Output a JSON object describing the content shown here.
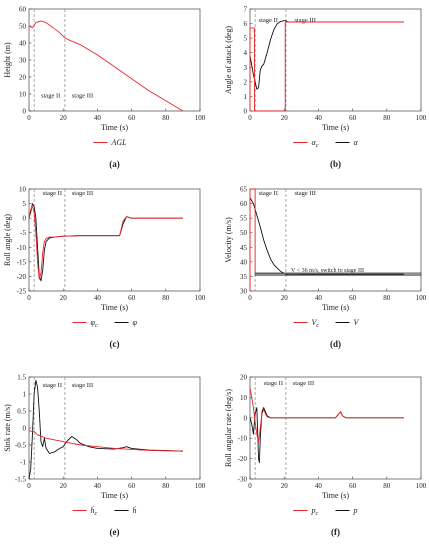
{
  "colors": {
    "cmd": "#e8262b",
    "actual": "#111111",
    "axis": "#444444",
    "guide": "#888888"
  },
  "chart_data": [
    {
      "panel_label": "(a)",
      "type": "line",
      "xlabel": "Time (s)",
      "ylabel": "Height (m)",
      "xlim": [
        0,
        100
      ],
      "ylim": [
        0,
        60
      ],
      "xticks": [
        0,
        20,
        40,
        60,
        80,
        100
      ],
      "yticks": [
        0,
        10,
        20,
        30,
        40,
        50,
        60
      ],
      "stage_lines": [
        3,
        21
      ],
      "stage_labels": [
        {
          "text": "stage II",
          "x": 7,
          "y": 8
        },
        {
          "text": "stage III",
          "x": 25,
          "y": 8
        }
      ],
      "series": [
        {
          "name": "AGL",
          "role": "cmd",
          "math": true,
          "x": [
            0,
            2,
            4,
            7,
            10,
            14,
            18,
            21,
            24,
            30,
            40,
            50,
            60,
            70,
            80,
            90
          ],
          "y": [
            50,
            49,
            52,
            53,
            52,
            49,
            46,
            43,
            41.5,
            39,
            33,
            26,
            19,
            12,
            6,
            0
          ]
        }
      ],
      "legend": [
        {
          "text": "AGL",
          "role": "cmd",
          "math": true
        }
      ]
    },
    {
      "panel_label": "(b)",
      "type": "line",
      "xlabel": "Time (s)",
      "ylabel": "Angle of attack (deg)",
      "xlim": [
        0,
        100
      ],
      "ylim": [
        0,
        7
      ],
      "xticks": [
        0,
        20,
        40,
        60,
        80,
        100
      ],
      "yticks": [
        0,
        1,
        2,
        3,
        4,
        5,
        6,
        7
      ],
      "stage_lines": [
        3,
        21
      ],
      "stage_labels": [
        {
          "text": "stage II",
          "x": 5,
          "y": 6.1
        },
        {
          "text": "stage III",
          "x": 26,
          "y": 6.1
        }
      ],
      "series": [
        {
          "name": "αc",
          "role": "cmd",
          "x": [
            0,
            0,
            2.6,
            2.6,
            20.6,
            20.6,
            90
          ],
          "y": [
            0,
            5.7,
            5.7,
            0,
            0,
            6.1,
            6.1
          ]
        },
        {
          "name": "α",
          "role": "actual",
          "x": [
            0,
            2,
            4,
            5,
            6,
            7,
            8,
            10,
            12,
            14,
            16,
            18,
            20,
            21,
            22,
            25,
            30,
            40,
            90
          ],
          "y": [
            3.8,
            2.5,
            1.5,
            1.6,
            2.8,
            3.1,
            3.2,
            4.0,
            4.9,
            5.6,
            6.0,
            6.15,
            6.2,
            6.2,
            6.12,
            6.1,
            6.1,
            6.1,
            6.1
          ]
        }
      ],
      "legend": [
        {
          "text": "αc",
          "role": "cmd",
          "math": true
        },
        {
          "text": "α",
          "role": "actual",
          "math": true
        }
      ]
    },
    {
      "panel_label": "(c)",
      "type": "line",
      "xlabel": "Time (s)",
      "ylabel": "Roll angle (deg)",
      "xlim": [
        0,
        100
      ],
      "ylim": [
        -25,
        10
      ],
      "xticks": [
        0,
        20,
        40,
        60,
        80,
        100
      ],
      "yticks": [
        -25,
        -20,
        -15,
        -10,
        -5,
        0,
        5,
        10
      ],
      "stage_lines": [
        3,
        21
      ],
      "stage_labels": [
        {
          "text": "stage II",
          "x": 8,
          "y": 8
        },
        {
          "text": "stage III",
          "x": 25,
          "y": 8
        }
      ],
      "series": [
        {
          "name": "φc",
          "role": "cmd",
          "x": [
            0,
            1,
            2,
            3,
            4,
            5,
            6,
            7,
            8,
            9,
            10,
            12,
            15,
            20,
            30,
            40,
            50,
            53,
            55,
            57,
            60,
            90
          ],
          "y": [
            0,
            3,
            4,
            2,
            -5,
            -15,
            -21,
            -19,
            -12,
            -8,
            -7,
            -6.5,
            -6.5,
            -6.2,
            -6,
            -6,
            -6,
            -6,
            -1,
            0.5,
            0,
            0
          ]
        },
        {
          "name": "φ",
          "role": "actual",
          "x": [
            0,
            1,
            2,
            3,
            4,
            5,
            6,
            7,
            8,
            9,
            10,
            12,
            15,
            20,
            30,
            40,
            50,
            53,
            55,
            57,
            60,
            90
          ],
          "y": [
            0,
            2,
            5,
            4,
            0,
            -10,
            -20,
            -21.5,
            -18,
            -11,
            -8,
            -6.8,
            -6.5,
            -6.2,
            -6,
            -6,
            -6,
            -6,
            -2,
            0.5,
            0,
            0
          ]
        }
      ],
      "legend": [
        {
          "text": "φc",
          "role": "cmd",
          "math": true
        },
        {
          "text": "φ",
          "role": "actual",
          "math": true
        }
      ]
    },
    {
      "panel_label": "(d)",
      "type": "line",
      "xlabel": "Time (s)",
      "ylabel": "Velocity (m/s)",
      "xlim": [
        0,
        100
      ],
      "ylim": [
        30,
        65
      ],
      "xticks": [
        0,
        20,
        40,
        60,
        80,
        100
      ],
      "yticks": [
        30,
        35,
        40,
        45,
        50,
        55,
        60,
        65
      ],
      "stage_lines": [
        3,
        21
      ],
      "stage_labels": [
        {
          "text": "stage II",
          "x": 5,
          "y": 63
        },
        {
          "text": "stage III",
          "x": 26,
          "y": 63
        }
      ],
      "annotation": {
        "text": "V < 36 m/s, switch to stage III",
        "x": 24,
        "y": 36.6
      },
      "threshold_band": [
        35.4,
        36.2
      ],
      "series": [
        {
          "name": "Vc",
          "role": "cmd",
          "x": [
            0,
            0,
            3,
            3,
            90
          ],
          "y": [
            30,
            65,
            65,
            36,
            36
          ]
        },
        {
          "name": "V",
          "role": "actual",
          "x": [
            0,
            2,
            4,
            6,
            8,
            10,
            12,
            14,
            16,
            18,
            20,
            22,
            25,
            30,
            40,
            60,
            90
          ],
          "y": [
            62,
            60,
            56,
            52,
            47.5,
            44,
            41,
            39,
            37.8,
            36.7,
            36,
            35.6,
            35.5,
            35.6,
            35.6,
            35.6,
            35.6
          ]
        }
      ],
      "legend": [
        {
          "text": "Vc",
          "role": "cmd",
          "math": true
        },
        {
          "text": "V",
          "role": "actual",
          "math": true
        }
      ]
    },
    {
      "panel_label": "(e)",
      "type": "line",
      "xlabel": "Time (s)",
      "ylabel": "Sink rate (m/s)",
      "xlim": [
        0,
        100
      ],
      "ylim": [
        -1.5,
        1.5
      ],
      "xticks": [
        0,
        20,
        40,
        60,
        80,
        100
      ],
      "yticks": [
        -1.5,
        -1,
        -0.5,
        0,
        0.5,
        1,
        1.5
      ],
      "stage_lines": [
        3,
        21
      ],
      "stage_labels": [
        {
          "text": "stage II",
          "x": 8,
          "y": 1.2
        },
        {
          "text": "stage III",
          "x": 25,
          "y": 1.2
        }
      ],
      "series": [
        {
          "name": "ḣc",
          "role": "cmd",
          "x": [
            0,
            2,
            3,
            5,
            10,
            15,
            20,
            30,
            40,
            50,
            60,
            70,
            90
          ],
          "y": [
            -0.08,
            -0.1,
            -0.1,
            -0.2,
            -0.3,
            -0.35,
            -0.4,
            -0.5,
            -0.55,
            -0.6,
            -0.63,
            -0.66,
            -0.68
          ]
        },
        {
          "name": "ḣ",
          "role": "actual",
          "x": [
            0,
            1,
            2,
            3,
            4,
            5,
            6,
            7,
            8,
            9,
            10,
            12,
            15,
            18,
            20,
            22,
            25,
            28,
            30,
            35,
            40,
            50,
            55,
            57,
            60,
            70,
            90
          ],
          "y": [
            -1.5,
            -1.2,
            -0.2,
            1.0,
            1.4,
            1.2,
            0.5,
            -0.4,
            -0.55,
            -0.3,
            -0.6,
            -0.75,
            -0.7,
            -0.6,
            -0.55,
            -0.4,
            -0.25,
            -0.35,
            -0.45,
            -0.55,
            -0.6,
            -0.62,
            -0.58,
            -0.55,
            -0.6,
            -0.65,
            -0.68
          ]
        }
      ],
      "legend": [
        {
          "text": "ḣc",
          "role": "cmd",
          "math": true
        },
        {
          "text": "ḣ",
          "role": "actual",
          "math": true
        }
      ]
    },
    {
      "panel_label": "(f)",
      "type": "line",
      "xlabel": "Time (s)",
      "ylabel": "Roll angular rate (deg/s)",
      "xlim": [
        0,
        100
      ],
      "ylim": [
        -30,
        20
      ],
      "xticks": [
        0,
        20,
        40,
        60,
        80,
        100
      ],
      "yticks": [
        -30,
        -20,
        -10,
        0,
        10,
        20
      ],
      "stage_lines": [
        3,
        21
      ],
      "stage_labels": [
        {
          "text": "stage II",
          "x": 8,
          "y": 16
        },
        {
          "text": "stage III",
          "x": 25,
          "y": 16
        }
      ],
      "series": [
        {
          "name": "pc",
          "role": "cmd",
          "x": [
            0,
            1,
            2,
            3,
            4,
            5,
            6,
            7,
            8,
            9,
            10,
            12,
            15,
            20,
            30,
            50,
            52,
            53,
            54,
            56,
            60,
            90
          ],
          "y": [
            15,
            10,
            5,
            -2,
            -8,
            -12,
            -5,
            2,
            4,
            2,
            0.5,
            0,
            0,
            0,
            0,
            0,
            2,
            3,
            1,
            0,
            0,
            0
          ]
        },
        {
          "name": "p",
          "role": "actual",
          "x": [
            0,
            1,
            2,
            3,
            4,
            5,
            5.5,
            6,
            7,
            8,
            9,
            10,
            12,
            15,
            20,
            30,
            50,
            52,
            53,
            54,
            56,
            60,
            90
          ],
          "y": [
            0,
            -3,
            -8,
            2,
            5,
            -20,
            -22,
            -10,
            3,
            5,
            3,
            1,
            0,
            0,
            0,
            0,
            0,
            2,
            3,
            1,
            0,
            0,
            0
          ]
        }
      ],
      "legend": [
        {
          "text": "pc",
          "role": "cmd",
          "math": true
        },
        {
          "text": "p",
          "role": "actual",
          "math": true
        }
      ]
    }
  ]
}
